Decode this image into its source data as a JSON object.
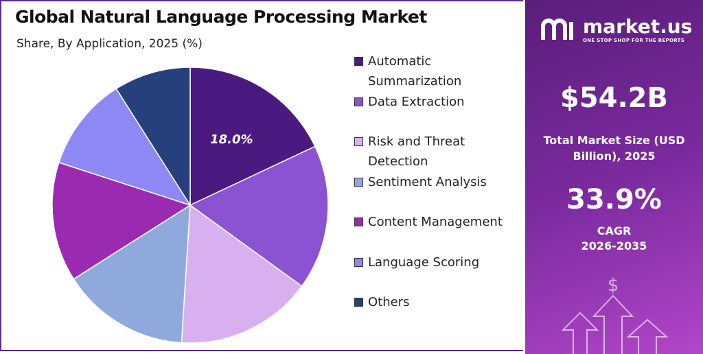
{
  "chart_data": {
    "type": "pie",
    "title": "Global Natural Language Processing Market",
    "subtitle": "Share, By Application, 2025 (%)",
    "categories": [
      "Automatic Summarization",
      "Data Extraction",
      "Risk and Threat Detection",
      "Sentiment Analysis",
      "Content Management",
      "Language Scoring",
      "Others"
    ],
    "values": [
      18,
      17,
      16,
      15,
      14,
      11,
      9
    ],
    "value_labels": [
      "18.0%",
      null,
      null,
      null,
      null,
      null,
      null
    ],
    "colors": [
      "#4a1a80",
      "#8b52d2",
      "#d8b0f0",
      "#8fa9dc",
      "#9a2bb0",
      "#8e88f5",
      "#25407b"
    ]
  },
  "panel": {
    "logo": "market.us",
    "tagline": "ONE STOP SHOP FOR THE REPORTS",
    "market_size": "$54.2B",
    "market_size_label": "Total Market Size (USD Billion), 2025",
    "cagr": "33.9%",
    "cagr_label": "CAGR",
    "cagr_period": "2026-2035"
  }
}
